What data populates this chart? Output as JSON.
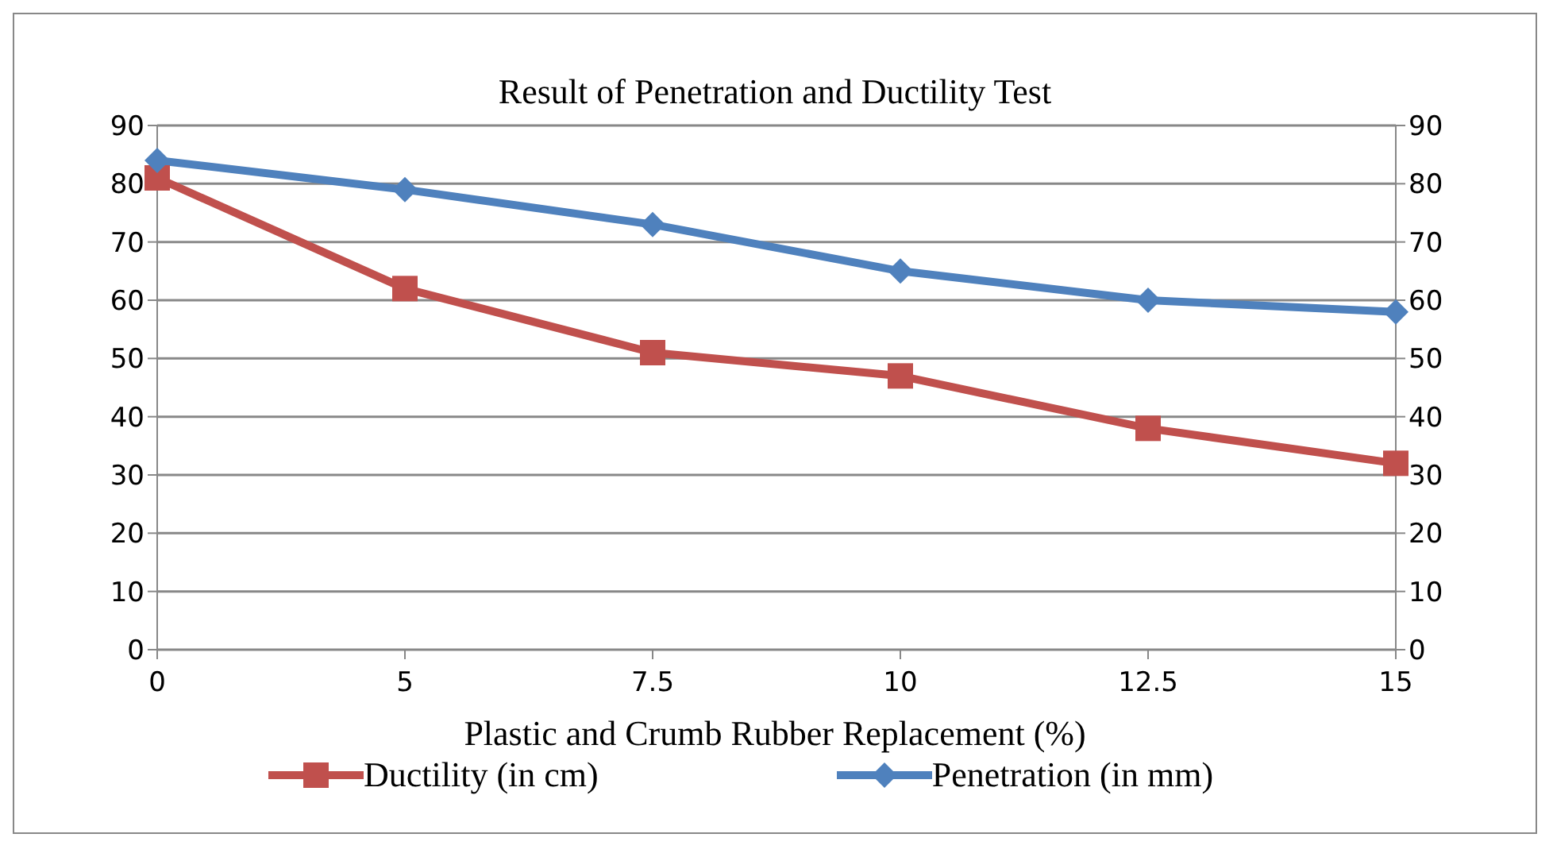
{
  "chart_data": {
    "type": "line",
    "title": "Result of Penetration and Ductility Test",
    "xlabel": "Plastic and Crumb Rubber Replacement (%)",
    "categories": [
      "0",
      "5",
      "7.5",
      "10",
      "12.5",
      "15"
    ],
    "series": [
      {
        "name": "Ductility (in cm)",
        "color": "#c0504d",
        "marker": "square",
        "values": [
          81,
          62,
          51,
          47,
          38,
          32
        ]
      },
      {
        "name": "Penetration (in mm)",
        "color": "#4f81bd",
        "marker": "diamond",
        "values": [
          84,
          79,
          73,
          65,
          60,
          58
        ]
      }
    ],
    "ylim": [
      0,
      90
    ],
    "yticks": [
      0,
      10,
      20,
      30,
      40,
      50,
      60,
      70,
      80,
      90
    ],
    "y2lim": [
      0,
      90
    ],
    "y2ticks": [
      0,
      10,
      20,
      30,
      40,
      50,
      60,
      70,
      80,
      90
    ],
    "grid": "y",
    "legend": "bottom",
    "line_style": "solid"
  }
}
